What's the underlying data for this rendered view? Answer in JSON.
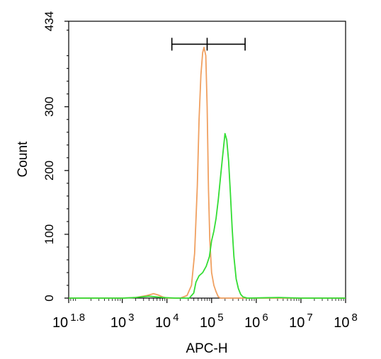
{
  "chart_data": {
    "type": "histogram",
    "xlabel": "APC-H",
    "ylabel": "Count",
    "x_scale": "log",
    "xlim": [
      1.8,
      8
    ],
    "ylim": [
      0,
      434
    ],
    "x_ticks": [
      {
        "value": 1.8,
        "base": "10",
        "exp": "1.8"
      },
      {
        "value": 3,
        "base": "10",
        "exp": "3"
      },
      {
        "value": 4,
        "base": "10",
        "exp": "4"
      },
      {
        "value": 5,
        "base": "10",
        "exp": "5"
      },
      {
        "value": 6,
        "base": "10",
        "exp": "6"
      },
      {
        "value": 7,
        "base": "10",
        "exp": "7"
      },
      {
        "value": 8,
        "base": "10",
        "exp": "8"
      }
    ],
    "y_ticks": [
      {
        "value": 0,
        "label": "0"
      },
      {
        "value": 100,
        "label": "100"
      },
      {
        "value": 200,
        "label": "200"
      },
      {
        "value": 300,
        "label": "300"
      },
      {
        "value": 434,
        "label": "434"
      }
    ],
    "gate": {
      "x_start": 4.11,
      "x_end": 5.75,
      "x_mid": 4.9,
      "y": 398
    },
    "series": [
      {
        "color": "#f0a060",
        "points": [
          [
            1.8,
            0
          ],
          [
            3.0,
            0
          ],
          [
            3.3,
            1
          ],
          [
            3.55,
            4
          ],
          [
            3.7,
            7
          ],
          [
            3.8,
            5
          ],
          [
            3.9,
            2
          ],
          [
            4.0,
            0
          ],
          [
            4.3,
            0
          ],
          [
            4.45,
            4
          ],
          [
            4.55,
            20
          ],
          [
            4.62,
            70
          ],
          [
            4.68,
            175
          ],
          [
            4.72,
            280
          ],
          [
            4.76,
            350
          ],
          [
            4.8,
            385
          ],
          [
            4.83,
            393
          ],
          [
            4.87,
            380
          ],
          [
            4.9,
            300
          ],
          [
            4.93,
            170
          ],
          [
            4.96,
            90
          ],
          [
            5.0,
            40
          ],
          [
            5.05,
            20
          ],
          [
            5.1,
            10
          ],
          [
            5.15,
            2
          ],
          [
            5.2,
            0
          ],
          [
            8.0,
            0
          ]
        ]
      },
      {
        "color": "#33dd33",
        "points": [
          [
            1.8,
            0
          ],
          [
            3.0,
            0
          ],
          [
            3.3,
            1
          ],
          [
            3.6,
            3
          ],
          [
            3.9,
            1
          ],
          [
            4.2,
            0
          ],
          [
            4.5,
            0
          ],
          [
            4.6,
            8
          ],
          [
            4.65,
            25
          ],
          [
            4.72,
            35
          ],
          [
            4.8,
            40
          ],
          [
            4.88,
            50
          ],
          [
            4.95,
            65
          ],
          [
            5.0,
            90
          ],
          [
            5.05,
            105
          ],
          [
            5.1,
            125
          ],
          [
            5.15,
            155
          ],
          [
            5.2,
            190
          ],
          [
            5.25,
            225
          ],
          [
            5.3,
            258
          ],
          [
            5.34,
            248
          ],
          [
            5.38,
            215
          ],
          [
            5.42,
            165
          ],
          [
            5.46,
            110
          ],
          [
            5.5,
            65
          ],
          [
            5.55,
            30
          ],
          [
            5.6,
            15
          ],
          [
            5.65,
            6
          ],
          [
            5.7,
            2
          ],
          [
            5.8,
            0
          ],
          [
            6.5,
            1
          ],
          [
            7.0,
            0
          ],
          [
            8.0,
            0
          ]
        ]
      }
    ]
  }
}
